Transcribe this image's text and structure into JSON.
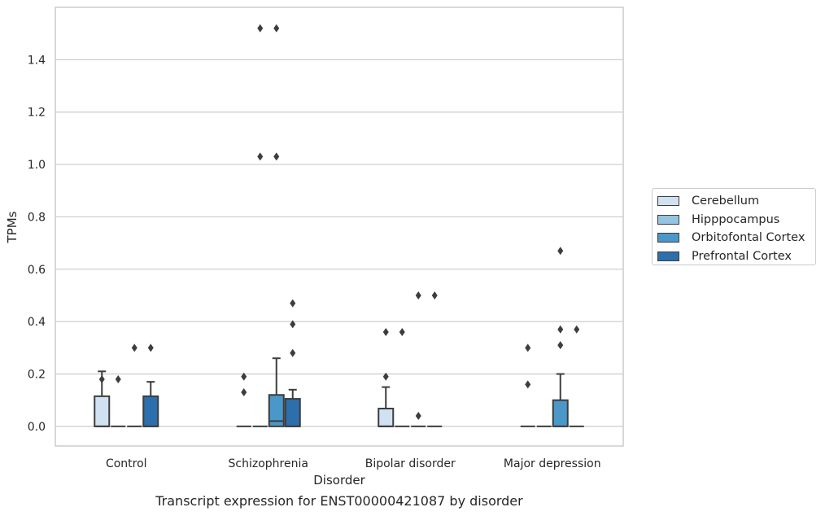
{
  "chart_data": {
    "type": "box",
    "caption": "Transcript expression for ENST00000421087 by disorder",
    "xlabel": "Disorder",
    "ylabel": "TPMs",
    "ylim": [
      -0.075,
      1.6
    ],
    "yticks": [
      0.0,
      0.2,
      0.4,
      0.6,
      0.8,
      1.0,
      1.2,
      1.4
    ],
    "ytick_labels": [
      "0.0",
      "0.2",
      "0.4",
      "0.6",
      "0.8",
      "1.0",
      "1.2",
      "1.4"
    ],
    "grid": true,
    "legend_position": "right",
    "categories": [
      "Control",
      "Schizophrenia",
      "Bipolar disorder",
      "Major depression"
    ],
    "series": [
      {
        "name": "Cerebellum",
        "color": "#d0e1f2",
        "boxes": [
          {
            "q1": 0.0,
            "median": 0.0,
            "q3": 0.115,
            "whislo": 0.0,
            "whishi": 0.21,
            "fliers": [
              0.18
            ]
          },
          {
            "q1": 0.0,
            "median": 0.0,
            "q3": 0.0,
            "whislo": 0.0,
            "whishi": 0.0,
            "fliers": [
              0.19,
              0.13
            ]
          },
          {
            "q1": 0.0,
            "median": 0.0,
            "q3": 0.068,
            "whislo": 0.0,
            "whishi": 0.15,
            "fliers": [
              0.19,
              0.36
            ]
          },
          {
            "q1": 0.0,
            "median": 0.0,
            "q3": 0.0,
            "whislo": 0.0,
            "whishi": 0.0,
            "fliers": [
              0.3,
              0.16
            ]
          }
        ]
      },
      {
        "name": "Hipppocampus",
        "color": "#94c4df",
        "boxes": [
          {
            "q1": 0.0,
            "median": 0.0,
            "q3": 0.0,
            "whislo": 0.0,
            "whishi": 0.0,
            "fliers": [
              0.18
            ]
          },
          {
            "q1": 0.0,
            "median": 0.0,
            "q3": 0.0,
            "whislo": 0.0,
            "whishi": 0.0,
            "fliers": [
              1.52,
              1.03
            ]
          },
          {
            "q1": 0.0,
            "median": 0.0,
            "q3": 0.0,
            "whislo": 0.0,
            "whishi": 0.0,
            "fliers": [
              0.36
            ]
          },
          {
            "q1": 0.0,
            "median": 0.0,
            "q3": 0.0,
            "whislo": 0.0,
            "whishi": 0.0,
            "fliers": []
          }
        ]
      },
      {
        "name": "Orbitofontal Cortex",
        "color": "#4a98c9",
        "boxes": [
          {
            "q1": 0.0,
            "median": 0.0,
            "q3": 0.0,
            "whislo": 0.0,
            "whishi": 0.0,
            "fliers": [
              0.3
            ]
          },
          {
            "q1": 0.0,
            "median": 0.02,
            "q3": 0.12,
            "whislo": 0.0,
            "whishi": 0.26,
            "fliers": [
              1.52,
              1.03
            ]
          },
          {
            "q1": 0.0,
            "median": 0.0,
            "q3": 0.0,
            "whislo": 0.0,
            "whishi": 0.0,
            "fliers": [
              0.04,
              0.5
            ]
          },
          {
            "q1": 0.0,
            "median": 0.0,
            "q3": 0.1,
            "whislo": 0.0,
            "whishi": 0.2,
            "fliers": [
              0.67,
              0.37,
              0.31
            ]
          }
        ]
      },
      {
        "name": "Prefrontal Cortex",
        "color": "#2d6fad",
        "boxes": [
          {
            "q1": 0.0,
            "median": 0.0,
            "q3": 0.115,
            "whislo": 0.0,
            "whishi": 0.17,
            "fliers": [
              0.3
            ]
          },
          {
            "q1": 0.0,
            "median": 0.0,
            "q3": 0.105,
            "whislo": 0.0,
            "whishi": 0.14,
            "fliers": [
              0.47,
              0.39,
              0.28
            ]
          },
          {
            "q1": 0.0,
            "median": 0.0,
            "q3": 0.0,
            "whislo": 0.0,
            "whishi": 0.0,
            "fliers": [
              0.5
            ]
          },
          {
            "q1": 0.0,
            "median": 0.0,
            "q3": 0.0,
            "whislo": 0.0,
            "whishi": 0.0,
            "fliers": [
              0.37
            ]
          }
        ]
      }
    ]
  }
}
